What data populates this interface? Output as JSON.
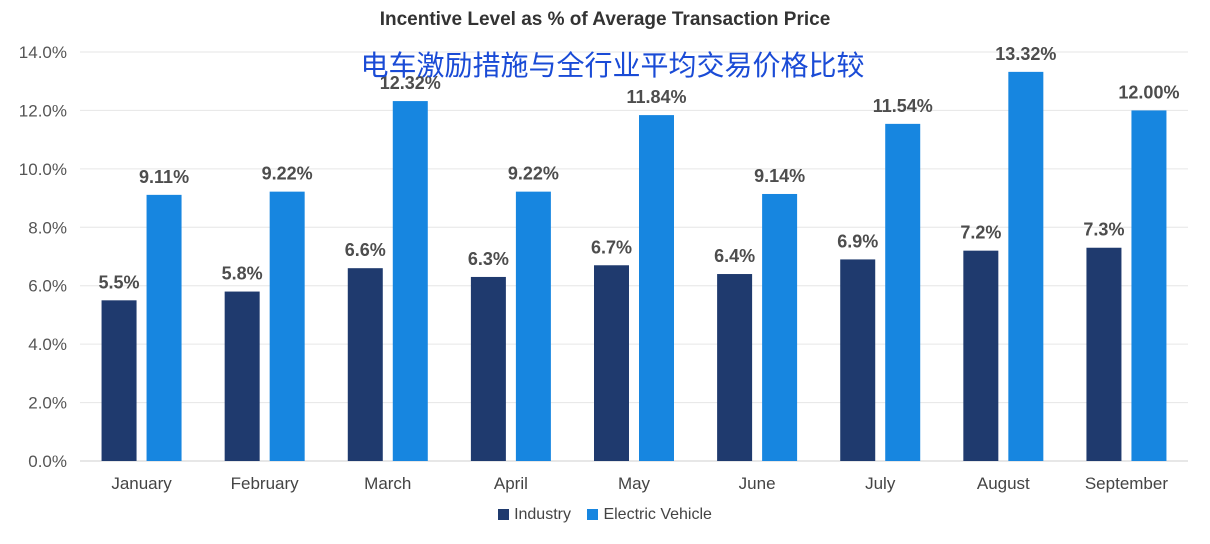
{
  "chart_data": {
    "type": "bar",
    "title": "Incentive Level as % of Average Transaction Price",
    "subtitle": "电车激励措施与全行业平均交易价格比较",
    "categories": [
      "January",
      "February",
      "March",
      "April",
      "May",
      "June",
      "July",
      "August",
      "September"
    ],
    "series": [
      {
        "name": "Industry",
        "color": "#1f3a6e",
        "values": [
          5.5,
          5.8,
          6.6,
          6.3,
          6.7,
          6.4,
          6.9,
          7.2,
          7.3
        ],
        "labels": [
          "5.5%",
          "5.8%",
          "6.6%",
          "6.3%",
          "6.7%",
          "6.4%",
          "6.9%",
          "7.2%",
          "7.3%"
        ]
      },
      {
        "name": "Electric Vehicle",
        "color": "#1786e0",
        "values": [
          9.11,
          9.22,
          12.32,
          9.22,
          11.84,
          9.14,
          11.54,
          13.32,
          12.0
        ],
        "labels": [
          "9.11%",
          "9.22%",
          "12.32%",
          "9.22%",
          "11.84%",
          "9.14%",
          "11.54%",
          "13.32%",
          "12.00%"
        ]
      }
    ],
    "yticks": [
      "0.0%",
      "2.0%",
      "4.0%",
      "6.0%",
      "8.0%",
      "10.0%",
      "12.0%",
      "14.0%"
    ],
    "ylim": [
      0,
      14
    ],
    "grid": true,
    "legend": "bottom"
  }
}
